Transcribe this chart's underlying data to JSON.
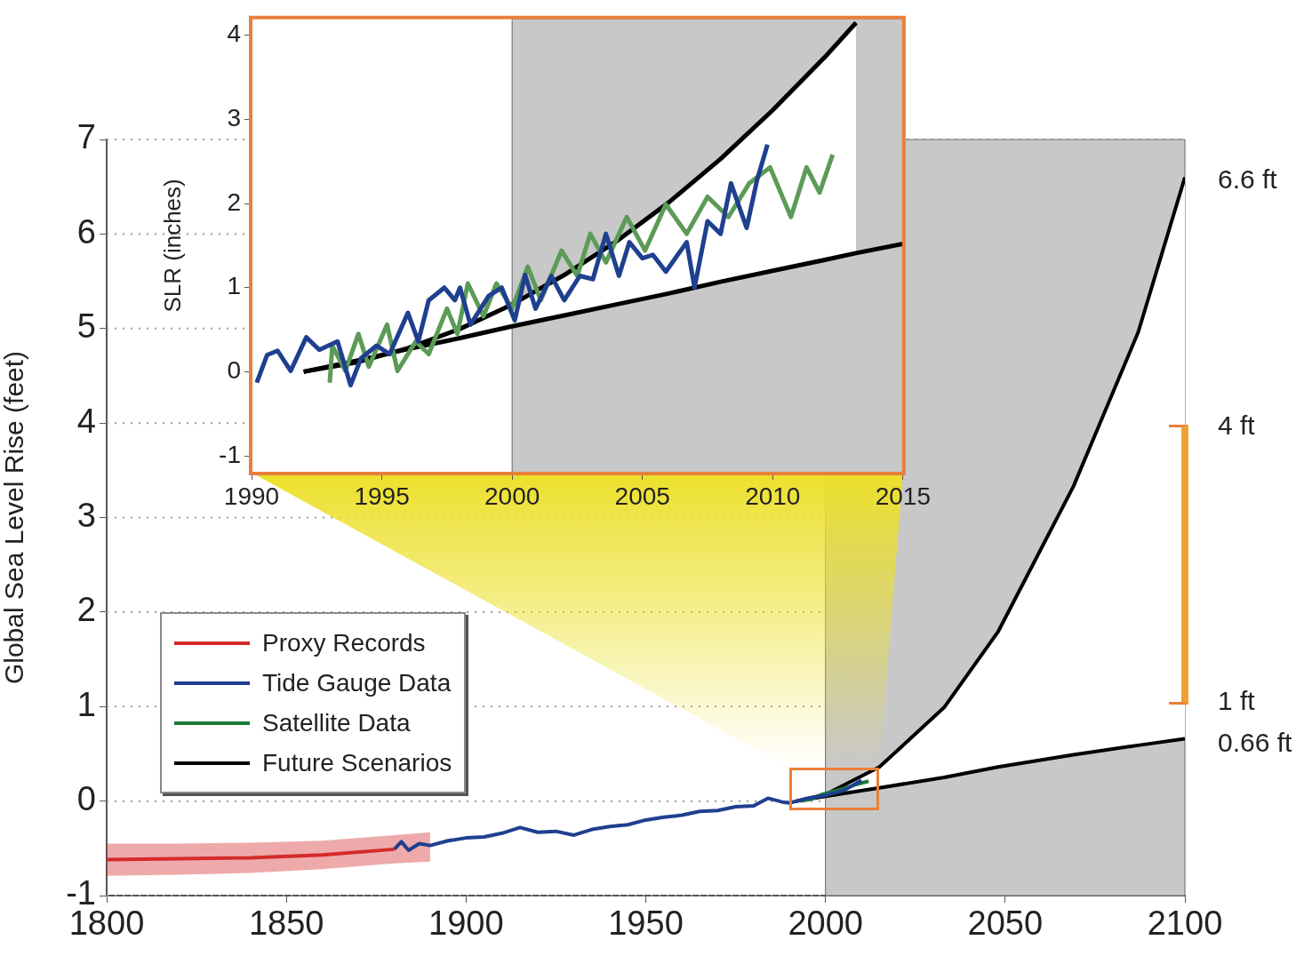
{
  "chart_data": [
    {
      "type": "line",
      "ylabel": "Global Sea Level Rise (feet)",
      "xlim": [
        1800,
        2100
      ],
      "ylim": [
        -1,
        7
      ],
      "xticks": [
        1800,
        1850,
        1900,
        1950,
        2000,
        2050,
        2100
      ],
      "yticks": [
        -1,
        0,
        1,
        2,
        3,
        4,
        5,
        6,
        7
      ],
      "grid": "y",
      "legend": "bottom left",
      "bands": [
        {
          "axis": "x",
          "from": 2000,
          "to": 2100,
          "color": "#c8c8c8"
        }
      ],
      "annotations": [
        "6.6 ft",
        "4 ft",
        "1 ft",
        "0.66 ft"
      ],
      "series": [
        {
          "name": "Proxy Records",
          "color": "#d42a2a",
          "x": [
            1800,
            1820,
            1840,
            1860,
            1880,
            1890
          ],
          "values": [
            -0.62,
            -0.61,
            -0.6,
            -0.57,
            -0.51,
            null
          ],
          "lower": [
            -0.79,
            -0.78,
            -0.76,
            -0.72,
            -0.66,
            -0.64
          ],
          "upper": [
            -0.45,
            -0.45,
            -0.44,
            -0.42,
            -0.36,
            -0.33
          ]
        },
        {
          "name": "Tide Gauge Data",
          "color": "#1f3f8f",
          "x": [
            1880,
            1882,
            1884,
            1887,
            1890,
            1895,
            1900,
            1905,
            1910,
            1915,
            1920,
            1925,
            1930,
            1935,
            1940,
            1945,
            1950,
            1955,
            1960,
            1965,
            1970,
            1975,
            1980,
            1984,
            1988,
            1990,
            1995,
            2000,
            2005,
            2010
          ],
          "values": [
            -0.51,
            -0.43,
            -0.52,
            -0.45,
            -0.47,
            -0.42,
            -0.39,
            -0.38,
            -0.34,
            -0.28,
            -0.33,
            -0.32,
            -0.36,
            -0.3,
            -0.27,
            -0.25,
            -0.2,
            -0.17,
            -0.15,
            -0.11,
            -0.1,
            -0.06,
            -0.05,
            0.03,
            -0.01,
            -0.02,
            0.03,
            0.06,
            0.11,
            0.22
          ]
        },
        {
          "name": "Satellite Data",
          "color": "#1a7a3c",
          "x": [
            1993,
            1996,
            1999,
            2002,
            2005,
            2008,
            2012
          ],
          "values": [
            0.0,
            0.02,
            0.07,
            0.1,
            0.13,
            0.17,
            0.21
          ]
        },
        {
          "name": "Future Scenarios",
          "color": "#000000",
          "x": [
            1992,
            2000,
            2015,
            2033,
            2048,
            2069,
            2087,
            2100
          ],
          "values": [
            0,
            0.07,
            0.36,
            0.99,
            1.79,
            3.33,
            4.96,
            6.6
          ]
        },
        {
          "color": "#000000",
          "x": [
            1992,
            2000,
            2015,
            2033,
            2048,
            2069,
            2087,
            2100
          ],
          "values": [
            0,
            0.05,
            0.14,
            0.25,
            0.36,
            0.49,
            0.59,
            0.66
          ]
        }
      ]
    },
    {
      "type": "line",
      "ylabel": "SLR (inches)",
      "xlim": [
        1990,
        2015
      ],
      "ylim": [
        -1.2,
        4.2
      ],
      "xticks": [
        1990,
        1995,
        2000,
        2005,
        2010,
        2015
      ],
      "yticks": [
        -1,
        0,
        1,
        2,
        3,
        4
      ],
      "bands": [
        {
          "axis": "x",
          "from": 2000,
          "to": 2015,
          "color": "#c8c8c8"
        }
      ],
      "series": [
        {
          "color": "#1f3f8f",
          "x": [
            1990.2,
            1990.6,
            1991,
            1991.5,
            1992.1,
            1992.6,
            1993.3,
            1993.8,
            1994.2,
            1994.8,
            1995.3,
            1996,
            1996.4,
            1996.8,
            1997.4,
            1997.8,
            1998,
            1998.4,
            1999.1,
            1999.6,
            2000.1,
            2000.5,
            2000.9,
            2001.5,
            2002,
            2002.6,
            2003.1,
            2003.6,
            2004.1,
            2004.5,
            2005,
            2005.4,
            2005.9,
            2006.7,
            2007,
            2007.5,
            2008,
            2008.4,
            2009,
            2009.4,
            2009.8
          ],
          "values": [
            -0.13,
            0.2,
            0.25,
            0.01,
            0.41,
            0.26,
            0.36,
            -0.16,
            0.16,
            0.31,
            0.21,
            0.7,
            0.36,
            0.85,
            1.0,
            0.85,
            1.0,
            0.56,
            0.9,
            1.0,
            0.61,
            1.15,
            0.75,
            1.14,
            0.85,
            1.14,
            1.1,
            1.64,
            1.14,
            1.54,
            1.35,
            1.39,
            1.19,
            1.54,
            1.0,
            1.79,
            1.64,
            2.24,
            1.71,
            2.28,
            2.7
          ]
        },
        {
          "color": "#5b9b57",
          "x": [
            1993,
            1993.1,
            1993.6,
            1994.1,
            1994.5,
            1995.2,
            1995.6,
            1996.3,
            1996.8,
            1997.5,
            1997.9,
            1998.3,
            1998.9,
            1999.4,
            2000,
            2000.6,
            2001.1,
            2001.9,
            2002.5,
            2003,
            2003.6,
            2004.4,
            2005.1,
            2005.9,
            2006.7,
            2007.5,
            2008.3,
            2009.1,
            2009.9,
            2010.7,
            2011.3,
            2011.8,
            2012.3
          ],
          "values": [
            -0.13,
            0.31,
            0.01,
            0.45,
            0.06,
            0.56,
            0.01,
            0.36,
            0.21,
            0.75,
            0.45,
            1.05,
            0.66,
            1.05,
            0.75,
            1.25,
            0.85,
            1.44,
            1.14,
            1.64,
            1.3,
            1.84,
            1.44,
            1.99,
            1.64,
            2.08,
            1.84,
            2.24,
            2.43,
            1.84,
            2.43,
            2.13,
            2.58
          ]
        },
        {
          "color": "#000000",
          "x": [
            1992,
            1994,
            1996,
            1998,
            2000,
            2002,
            2004,
            2006,
            2008,
            2010,
            2012,
            2013.2
          ],
          "values": [
            0,
            0.11,
            0.28,
            0.51,
            0.8,
            1.15,
            1.55,
            2.01,
            2.53,
            3.11,
            3.74,
            4.15
          ]
        },
        {
          "color": "#000000",
          "x": [
            1992,
            1994,
            1996,
            1998,
            2000,
            2002,
            2004,
            2006,
            2008,
            2010,
            2012,
            2013.2,
            2015
          ],
          "values": [
            0,
            0.13,
            0.27,
            0.4,
            0.54,
            0.67,
            0.8,
            0.93,
            1.07,
            1.2,
            1.33,
            1.41,
            1.52
          ]
        }
      ]
    }
  ]
}
